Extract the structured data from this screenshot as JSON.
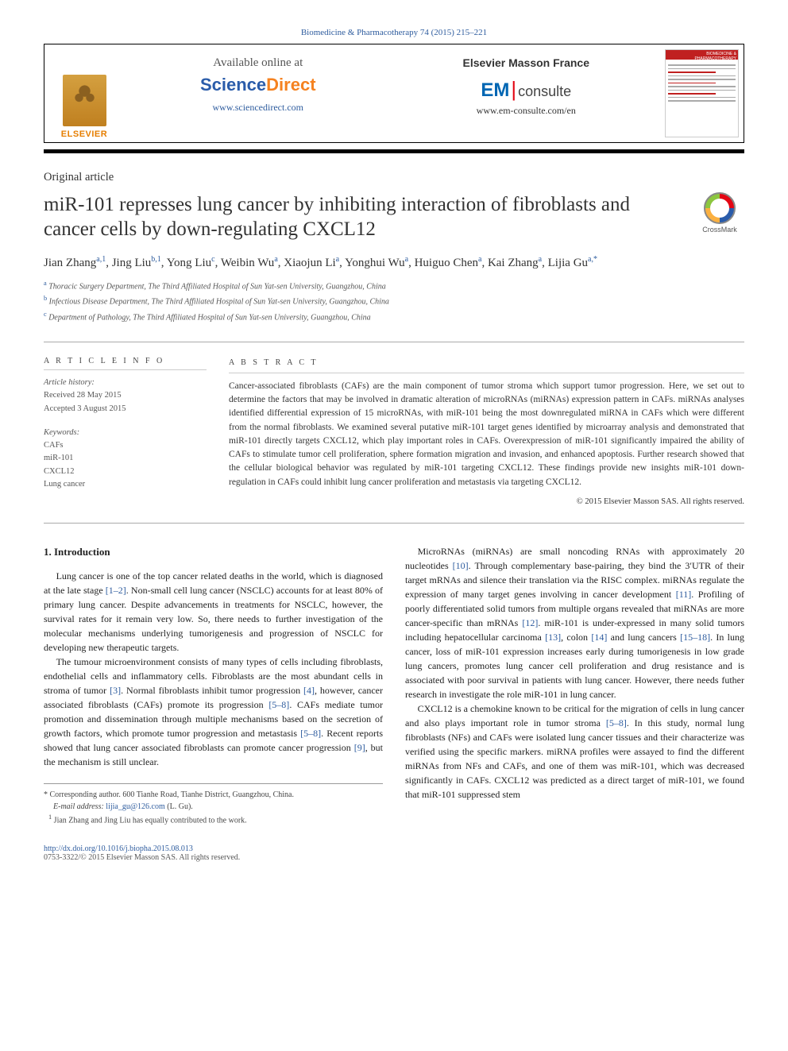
{
  "journal_header": "Biomedicine & Pharmacotherapy 74 (2015) 215–221",
  "header": {
    "available": "Available online at",
    "sciencedirect": {
      "s": "Science",
      "d": "Direct",
      "url": "www.sciencedirect.com"
    },
    "emf_title": "Elsevier Masson France",
    "em": {
      "em": "EM",
      "consulte": "consulte",
      "url": "www.em-consulte.com/en"
    },
    "elsevier": "ELSEVIER",
    "thumb_brand": "BIOMEDICINE & PHARMACOTHERAPY"
  },
  "article_type": "Original article",
  "title": "miR-101 represses lung cancer by inhibiting interaction of fibroblasts and cancer cells by down-regulating CXCL12",
  "crossmark": "CrossMark",
  "authors_html": "Jian Zhang<sup><a>a</a>,<a>1</a></sup>, Jing Liu<sup><a>b</a>,<a>1</a></sup>, Yong Liu<sup><a>c</a></sup>, Weibin Wu<sup><a>a</a></sup>, Xiaojun Li<sup><a>a</a></sup>, Yonghui Wu<sup><a>a</a></sup>, Huiguo Chen<sup><a>a</a></sup>, Kai Zhang<sup><a>a</a></sup>, Lijia Gu<sup><a>a</a>,<a>*</a></sup>",
  "affiliations": [
    {
      "sup": "a",
      "text": "Thoracic Surgery Department, The Third Affiliated Hospital of Sun Yat-sen University, Guangzhou, China"
    },
    {
      "sup": "b",
      "text": "Infectious Disease Department, The Third Affiliated Hospital of Sun Yat-sen University, Guangzhou, China"
    },
    {
      "sup": "c",
      "text": "Department of Pathology, The Third Affiliated Hospital of Sun Yat-sen University, Guangzhou, China"
    }
  ],
  "info": {
    "head": "A R T I C L E  I N F O",
    "history_label": "Article history:",
    "received": "Received 28 May 2015",
    "accepted": "Accepted 3 August 2015",
    "keywords_label": "Keywords:",
    "keywords": [
      "CAFs",
      "miR-101",
      "CXCL12",
      "Lung cancer"
    ]
  },
  "abstract": {
    "head": "A B S T R A C T",
    "text": "Cancer-associated fibroblasts (CAFs) are the main component of tumor stroma which support tumor progression. Here, we set out to determine the factors that may be involved in dramatic alteration of microRNAs (miRNAs) expression pattern in CAFs. miRNAs analyses identified differential expression of 15 microRNAs, with miR-101 being the most downregulated miRNA in CAFs which were different from the normal fibroblasts. We examined several putative miR-101 target genes identified by microarray analysis and demonstrated that miR-101 directly targets CXCL12, which play important roles in CAFs. Overexpression of miR-101 significantly impaired the ability of CAFs to stimulate tumor cell proliferation, sphere formation migration and invasion, and enhanced apoptosis. Further research showed that the cellular biological behavior was regulated by miR-101 targeting CXCL12. These findings provide new insights miR-101 down-regulation in CAFs could inhibit lung cancer proliferation and metastasis via targeting CXCL12.",
    "copyright": "© 2015 Elsevier Masson SAS. All rights reserved."
  },
  "section_heading": "1. Introduction",
  "paragraphs": [
    "Lung cancer is one of the top cancer related deaths in the world, which is diagnosed at the late stage <span class=\"reflink\">[1–2]</span>. Non-small cell lung cancer (NSCLC) accounts for at least 80% of primary lung cancer. Despite advancements in treatments for NSCLC, however, the survival rates for it remain very low. So, there needs to further investigation of the molecular mechanisms underlying tumorigenesis and progression of NSCLC for developing new therapeutic targets.",
    "The tumour microenvironment consists of many types of cells including fibroblasts, endothelial cells and inflammatory cells. Fibroblasts are the most abundant cells in stroma of tumor <span class=\"reflink\">[3]</span>. Normal fibroblasts inhibit tumor progression <span class=\"reflink\">[4]</span>, however, cancer associated fibroblasts (CAFs) promote its progression <span class=\"reflink\">[5–8]</span>. CAFs mediate tumor promotion and dissemination through multiple mechanisms based on the secretion of growth factors, which promote tumor progression and metastasis <span class=\"reflink\">[5–8]</span>. Recent reports showed that lung cancer associated fibroblasts can promote cancer progression <span class=\"reflink\">[9]</span>, but the mechanism is still unclear.",
    "MicroRNAs (miRNAs) are small noncoding RNAs with approximately 20 nucleotides <span class=\"reflink\">[10]</span>. Through complementary base-pairing, they bind the 3′UTR of their target mRNAs and silence their translation via the RISC complex. miRNAs regulate the expression of many target genes involving in cancer development <span class=\"reflink\">[11]</span>. Profiling of poorly differentiated solid tumors from multiple organs revealed that miRNAs are more cancer-specific than mRNAs <span class=\"reflink\">[12]</span>. miR-101 is under-expressed in many solid tumors including hepatocellular carcinoma <span class=\"reflink\">[13]</span>, colon <span class=\"reflink\">[14]</span> and lung cancers <span class=\"reflink\">[15–18]</span>. In lung cancer, loss of miR-101 expression increases early during tumorigenesis in low grade lung cancers, promotes lung cancer cell proliferation and drug resistance and is associated with poor survival in patients with lung cancer. However, there needs futher research in investigate the role miR-101 in lung cancer.",
    "CXCL12 is a chemokine known to be critical for the migration of cells in lung cancer and also plays important role in tumor stroma <span class=\"reflink\">[5–8]</span>. In this study, normal lung fibroblasts (NFs) and CAFs were isolated lung cancer tissues and their characterize was verified using the specific markers. miRNA profiles were assayed to find the different miRNAs from NFs and CAFs, and one of them was miR-101, which was decreased significantly in CAFs. CXCL12 was predicted as a direct target of miR-101, we found that miR-101 suppressed stem"
  ],
  "footnotes": {
    "corr": "* Corresponding author. 600 Tianhe Road, Tianhe District, Guangzhou, China.",
    "email_label": "E-mail address:",
    "email": "lijia_gu@126.com",
    "email_person": "(L. Gu).",
    "contrib": "Jian Zhang and Jing Liu has equally contributed to the work.",
    "contrib_sup": "1"
  },
  "footer": {
    "doi": "http://dx.doi.org/10.1016/j.biopha.2015.08.013",
    "issn": "0753-3322/© 2015 Elsevier Masson SAS. All rights reserved."
  }
}
